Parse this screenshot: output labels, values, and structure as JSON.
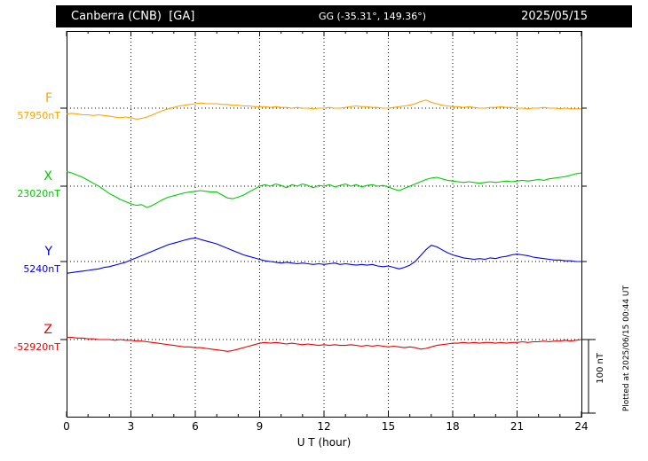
{
  "header": {
    "station": "Canberra (CNB)  [GA]",
    "coords": "GG (-35.31°, 149.36°)",
    "date": "2025/05/15"
  },
  "footer": {
    "xlabel": "U T (hour)"
  },
  "side": {
    "scale_label": "100 nT",
    "plotted_at": "Plotted at 2025/06/15 00:44 UT"
  },
  "chart_data": {
    "type": "line",
    "title": "Canberra (CNB) [GA] magnetogram 2025/05/15",
    "xlabel": "U T (hour)",
    "x_range": [
      0,
      24
    ],
    "x_ticks": [
      0,
      3,
      6,
      9,
      12,
      15,
      18,
      21,
      24
    ],
    "x_step_hours": 0.25,
    "grid": "dotted vertical at 3-hour intervals, dotted horizontal at each series baseline",
    "scale_bar": {
      "label": "100 nT",
      "nT": 100,
      "position": "right, aligned with Z trace"
    },
    "series": [
      {
        "name": "F",
        "color": "#FFA500",
        "baseline_label": "57950nT",
        "baseline_value_nT": 57950,
        "offsets_nT": [
          -8,
          -7,
          -8,
          -9,
          -9,
          -10,
          -9,
          -10,
          -11,
          -12,
          -13,
          -12,
          -13,
          -15,
          -14,
          -12,
          -9,
          -6,
          -3,
          -1,
          1,
          3,
          4,
          5,
          6,
          7,
          6,
          6,
          6,
          5,
          5,
          4,
          4,
          3,
          3,
          2,
          2,
          2,
          1,
          2,
          1,
          1,
          0,
          1,
          0,
          0,
          -1,
          0,
          0,
          1,
          0,
          0,
          1,
          2,
          3,
          2,
          2,
          1,
          1,
          0,
          0,
          1,
          2,
          3,
          4,
          6,
          9,
          11,
          8,
          6,
          4,
          3,
          2,
          2,
          1,
          2,
          1,
          0,
          0,
          1,
          1,
          2,
          1,
          1,
          0,
          0,
          -1,
          0,
          0,
          1,
          0,
          0,
          -1,
          0,
          -1,
          -1,
          -1
        ]
      },
      {
        "name": "X",
        "color": "#00CC00",
        "baseline_label": "23020nT",
        "baseline_value_nT": 23020,
        "offsets_nT": [
          20,
          18,
          15,
          12,
          8,
          4,
          0,
          -5,
          -10,
          -14,
          -18,
          -21,
          -24,
          -26,
          -25,
          -29,
          -26,
          -22,
          -18,
          -15,
          -13,
          -11,
          -9,
          -8,
          -7,
          -6,
          -7,
          -8,
          -8,
          -12,
          -16,
          -17,
          -15,
          -12,
          -8,
          -4,
          0,
          2,
          0,
          3,
          1,
          -2,
          2,
          0,
          3,
          1,
          -2,
          1,
          0,
          2,
          -1,
          1,
          3,
          0,
          2,
          -1,
          1,
          2,
          0,
          1,
          -1,
          -4,
          -6,
          -3,
          0,
          3,
          6,
          9,
          11,
          12,
          10,
          8,
          7,
          6,
          5,
          6,
          5,
          4,
          5,
          6,
          5,
          6,
          7,
          6,
          7,
          8,
          7,
          8,
          9,
          8,
          10,
          11,
          12,
          13,
          15,
          17,
          18
        ]
      },
      {
        "name": "Y",
        "color": "#0000EE",
        "baseline_label": "5240nT",
        "baseline_value_nT": 5240,
        "offsets_nT": [
          -16,
          -15,
          -14,
          -13,
          -12,
          -11,
          -10,
          -8,
          -7,
          -5,
          -3,
          -1,
          2,
          5,
          8,
          11,
          14,
          17,
          20,
          23,
          25,
          27,
          29,
          31,
          32,
          30,
          28,
          26,
          24,
          21,
          18,
          15,
          12,
          9,
          7,
          5,
          3,
          1,
          0,
          -1,
          -2,
          -1,
          -2,
          -3,
          -2,
          -3,
          -4,
          -3,
          -4,
          -3,
          -2,
          -4,
          -3,
          -4,
          -5,
          -4,
          -5,
          -4,
          -6,
          -7,
          -6,
          -8,
          -10,
          -8,
          -5,
          0,
          8,
          16,
          22,
          20,
          16,
          12,
          9,
          7,
          5,
          4,
          3,
          4,
          3,
          5,
          4,
          6,
          7,
          9,
          10,
          9,
          8,
          6,
          5,
          4,
          3,
          2,
          2,
          1,
          1,
          0,
          0
        ]
      },
      {
        "name": "Z",
        "color": "#EE0000",
        "baseline_label": "-52920nT",
        "baseline_value_nT": -52920,
        "offsets_nT": [
          3,
          3,
          2,
          2,
          1,
          1,
          0,
          0,
          0,
          -1,
          0,
          -1,
          -1,
          -2,
          -2,
          -3,
          -4,
          -5,
          -6,
          -7,
          -8,
          -9,
          -10,
          -10,
          -11,
          -11,
          -12,
          -13,
          -14,
          -15,
          -16,
          -15,
          -13,
          -11,
          -9,
          -7,
          -5,
          -4,
          -5,
          -4,
          -5,
          -6,
          -5,
          -6,
          -7,
          -6,
          -7,
          -8,
          -7,
          -8,
          -7,
          -8,
          -8,
          -7,
          -8,
          -9,
          -8,
          -9,
          -8,
          -9,
          -10,
          -9,
          -10,
          -11,
          -10,
          -11,
          -13,
          -12,
          -10,
          -8,
          -7,
          -6,
          -5,
          -5,
          -4,
          -5,
          -4,
          -5,
          -4,
          -4,
          -5,
          -4,
          -5,
          -4,
          -4,
          -3,
          -4,
          -3,
          -3,
          -2,
          -3,
          -2,
          -2,
          -1,
          -2,
          -1,
          0
        ]
      }
    ]
  }
}
